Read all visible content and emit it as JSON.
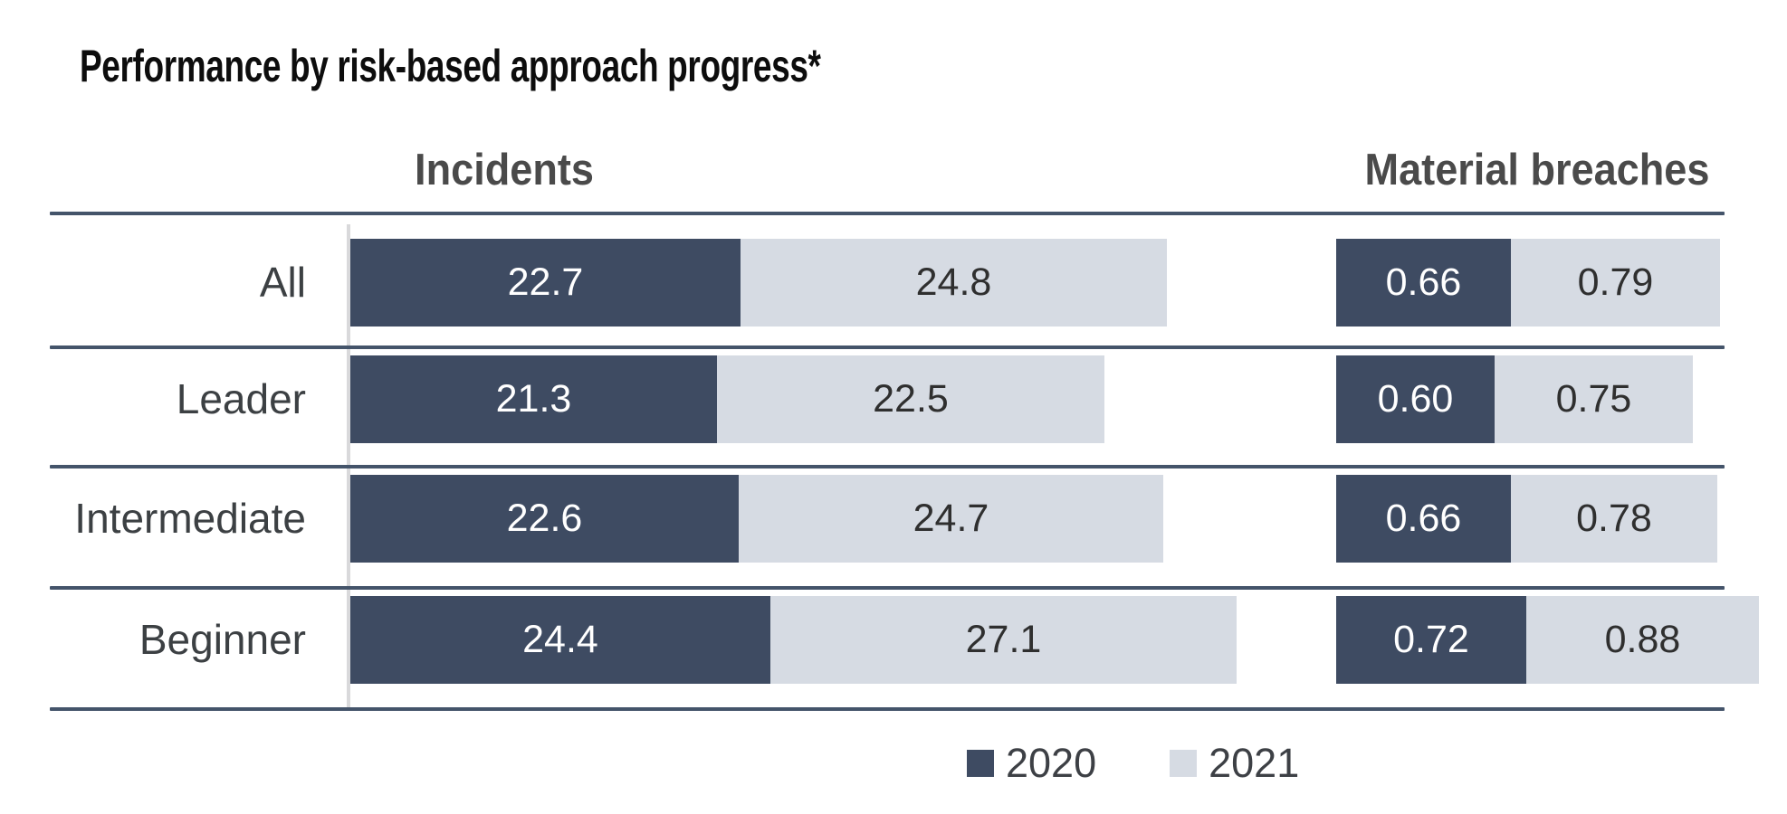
{
  "title": "Performance by risk-based approach progress*",
  "chart_data": {
    "type": "bar",
    "subtype": "horizontal-stacked",
    "categories": [
      "All",
      "Leader",
      "Intermediate",
      "Beginner"
    ],
    "legend": [
      "2020",
      "2021"
    ],
    "legend_position": "bottom-center",
    "grid": "horizontal-separator-lines-only",
    "colors": {
      "2020": "#3e4b62",
      "2021": "#d6dbe3",
      "separator_line": "#44546a",
      "axis_line": "#d9d9db",
      "value_text_on_2020": "#ffffff",
      "value_text_on_2021": "#2f2f2f",
      "header_text": "#4a4a4a",
      "title_text": "#0d0d0d"
    },
    "panels": [
      {
        "title": "Incidents",
        "decimals": 1,
        "series": [
          {
            "name": "2020",
            "values": [
              22.7,
              21.3,
              22.6,
              24.4
            ]
          },
          {
            "name": "2021",
            "values": [
              24.8,
              22.5,
              24.7,
              27.1
            ]
          }
        ]
      },
      {
        "title": "Material breaches",
        "decimals": 2,
        "series": [
          {
            "name": "2020",
            "values": [
              0.66,
              0.6,
              0.66,
              0.72
            ]
          },
          {
            "name": "2021",
            "values": [
              0.79,
              0.75,
              0.78,
              0.88
            ]
          }
        ]
      }
    ]
  }
}
